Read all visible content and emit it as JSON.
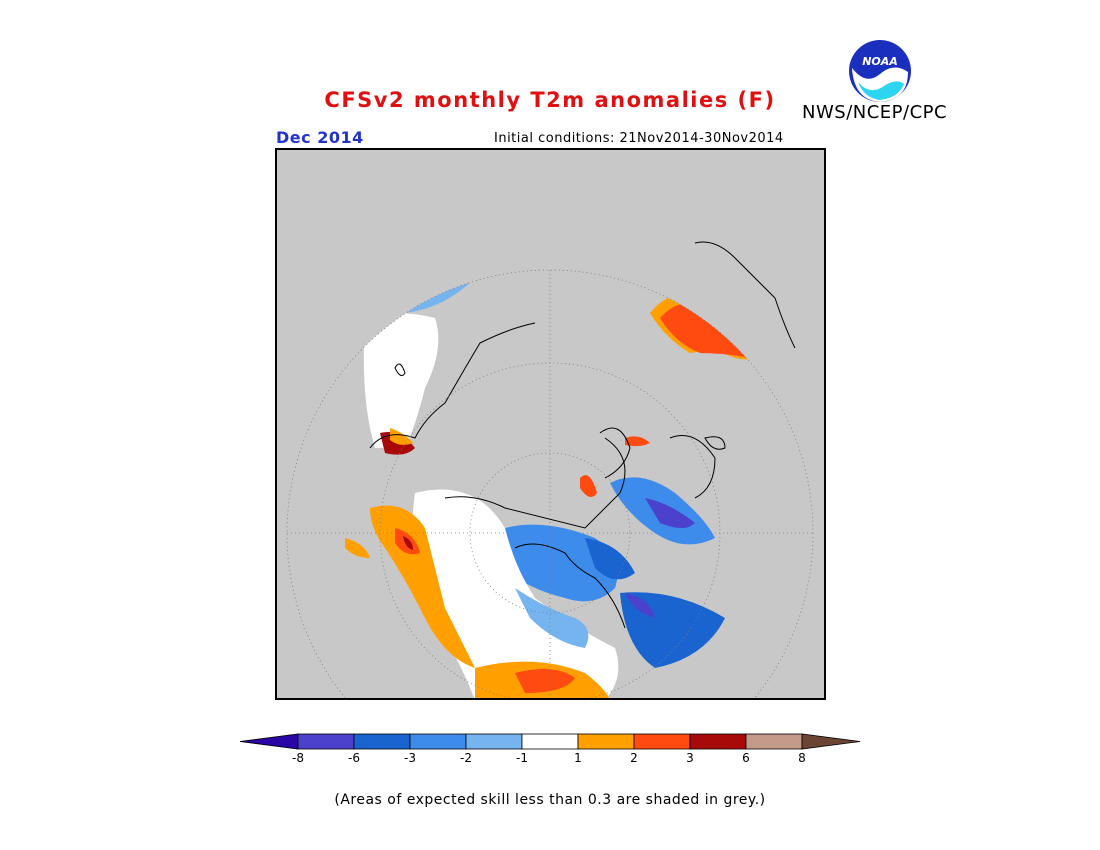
{
  "header": {
    "title": "CFSv2 monthly T2m anomalies (F)",
    "agency": "NWS/NCEP/CPC",
    "month": "Dec 2014",
    "initial_conditions": "Initial conditions: 21Nov2014-30Nov2014"
  },
  "logo": {
    "text": "NOAA",
    "icon": "noaa-logo-icon"
  },
  "legend": {
    "tick_labels": [
      "-8",
      "-6",
      "-3",
      "-2",
      "-1",
      "1",
      "2",
      "3",
      "6",
      "8"
    ],
    "colors": [
      "#2a06a6",
      "#4b41cc",
      "#1a64d0",
      "#3d8ceb",
      "#76b4f0",
      "#ffffff",
      "#ffa000",
      "#ff4a10",
      "#a80a0a",
      "#c49a8a",
      "#6b4436"
    ]
  },
  "map": {
    "projection": "north polar stereographic",
    "skill_mask_color": "#c8c8c8"
  },
  "footer": {
    "note": "(Areas of expected skill less than 0.3 are shaded in grey.)"
  }
}
